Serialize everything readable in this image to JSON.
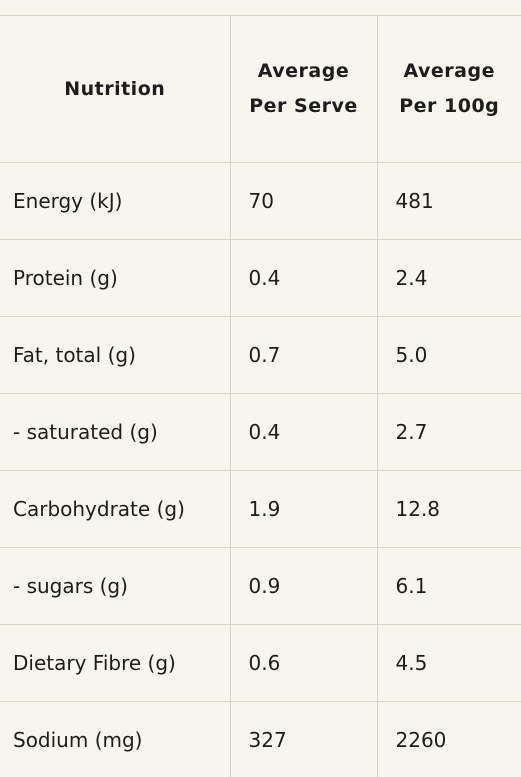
{
  "table": {
    "headers": [
      "Nutrition",
      "Average Per Serve",
      "Average Per 100g"
    ],
    "rows": [
      {
        "name": "Energy (kJ)",
        "per_serve": "70",
        "per_100g": "481"
      },
      {
        "name": "Protein (g)",
        "per_serve": "0.4",
        "per_100g": "2.4"
      },
      {
        "name": "Fat, total (g)",
        "per_serve": "0.7",
        "per_100g": "5.0"
      },
      {
        "name": "- saturated (g)",
        "per_serve": "0.4",
        "per_100g": "2.7"
      },
      {
        "name": "Carbohydrate (g)",
        "per_serve": "1.9",
        "per_100g": "12.8"
      },
      {
        "name": "- sugars (g)",
        "per_serve": "0.9",
        "per_100g": "6.1"
      },
      {
        "name": "Dietary Fibre (g)",
        "per_serve": "0.6",
        "per_100g": "4.5"
      },
      {
        "name": "Sodium (mg)",
        "per_serve": "327",
        "per_100g": "2260"
      }
    ]
  }
}
